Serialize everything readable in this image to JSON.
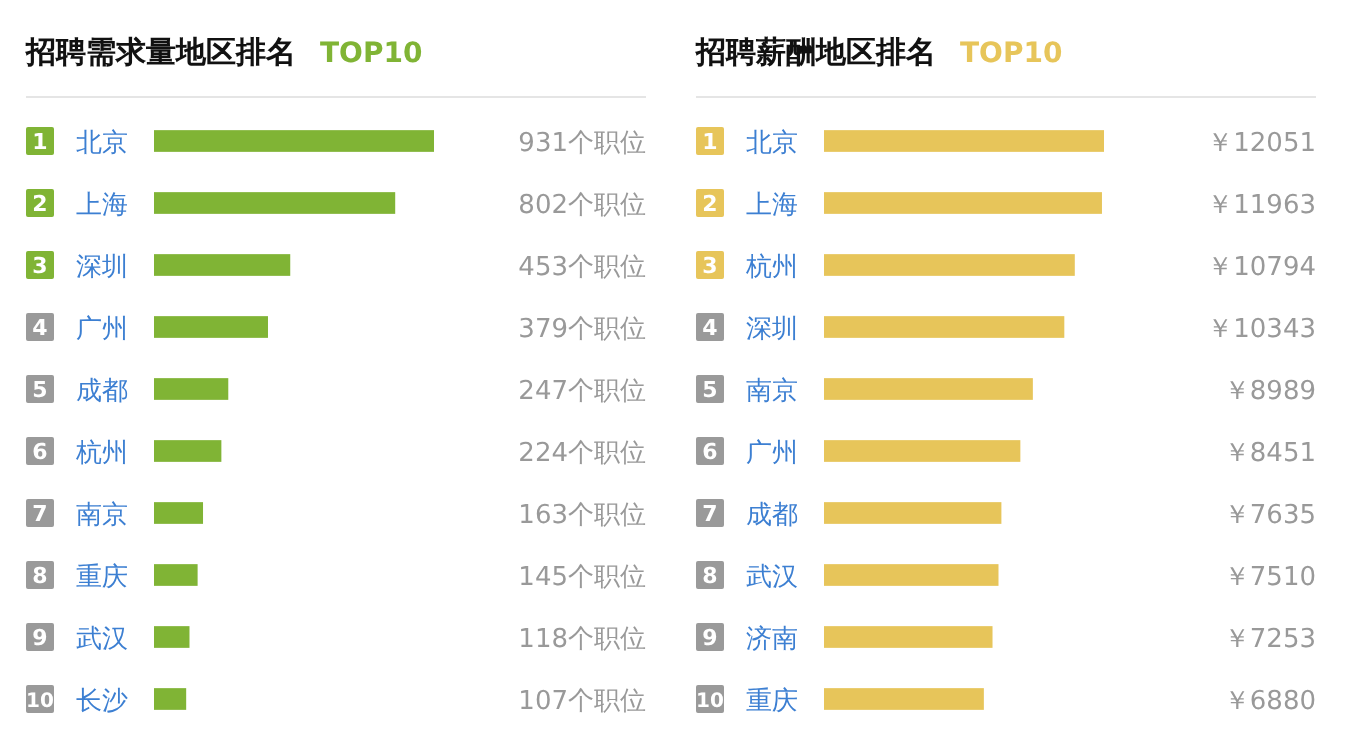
{
  "chart_data": [
    {
      "type": "bar",
      "orientation": "horizontal",
      "title": "招聘需求量地区排名",
      "subtitle": "TOP10",
      "categories": [
        "北京",
        "上海",
        "深圳",
        "广州",
        "成都",
        "杭州",
        "南京",
        "重庆",
        "武汉",
        "长沙"
      ],
      "series": [
        {
          "color": "#80b435",
          "values": [
            931,
            802,
            453,
            379,
            247,
            224,
            163,
            145,
            118,
            107
          ],
          "value_labels": [
            "931个职位",
            "802个职位",
            "453个职位",
            "379个职位",
            "247个职位",
            "224个职位",
            "163个职位",
            "145个职位",
            "118个职位",
            "107个职位"
          ]
        }
      ],
      "annotations": [
        "1",
        "2",
        "3",
        "4",
        "5",
        "6",
        "7",
        "8",
        "9",
        "10"
      ]
    },
    {
      "type": "bar",
      "orientation": "horizontal",
      "title": "招聘薪酬地区排名",
      "subtitle": "TOP10",
      "categories": [
        "北京",
        "上海",
        "杭州",
        "深圳",
        "南京",
        "广州",
        "成都",
        "武汉",
        "济南",
        "重庆"
      ],
      "series": [
        {
          "color": "#e7c55a",
          "values": [
            12051,
            11963,
            10794,
            10343,
            8989,
            8451,
            7635,
            7510,
            7253,
            6880
          ],
          "value_labels": [
            "￥12051",
            "￥11963",
            "￥10794",
            "￥10343",
            "￥8989",
            "￥8451",
            "￥7635",
            "￥7510",
            "￥7253",
            "￥6880"
          ]
        }
      ],
      "annotations": [
        "1",
        "2",
        "3",
        "4",
        "5",
        "6",
        "7",
        "8",
        "9",
        "10"
      ]
    }
  ]
}
